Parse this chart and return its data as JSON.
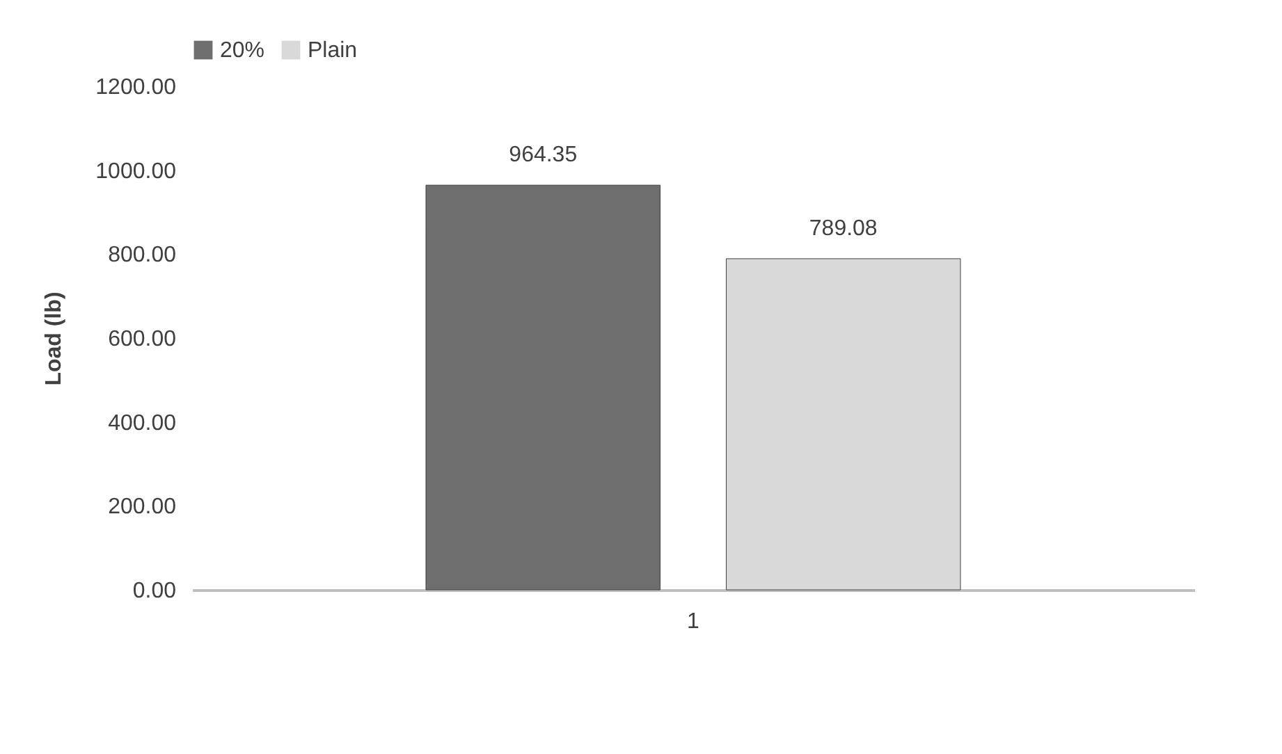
{
  "chart_data": {
    "type": "bar",
    "ylabel": "Load (lb)",
    "categories": [
      "1"
    ],
    "series": [
      {
        "name": "20%",
        "color": "#6e6e6e",
        "values": [
          964.35
        ]
      },
      {
        "name": "Plain",
        "color": "#d9d9d9",
        "values": [
          789.08
        ]
      }
    ],
    "ylim": [
      0,
      1200
    ],
    "yticks": [
      {
        "value": 0,
        "label": "0.00"
      },
      {
        "value": 200,
        "label": "200.00"
      },
      {
        "value": 400,
        "label": "400.00"
      },
      {
        "value": 600,
        "label": "600.00"
      },
      {
        "value": 800,
        "label": "800.00"
      },
      {
        "value": 1000,
        "label": "1000.00"
      },
      {
        "value": 1200,
        "label": "1200.00"
      }
    ],
    "data_labels": true,
    "legend": "top",
    "grid": false
  }
}
